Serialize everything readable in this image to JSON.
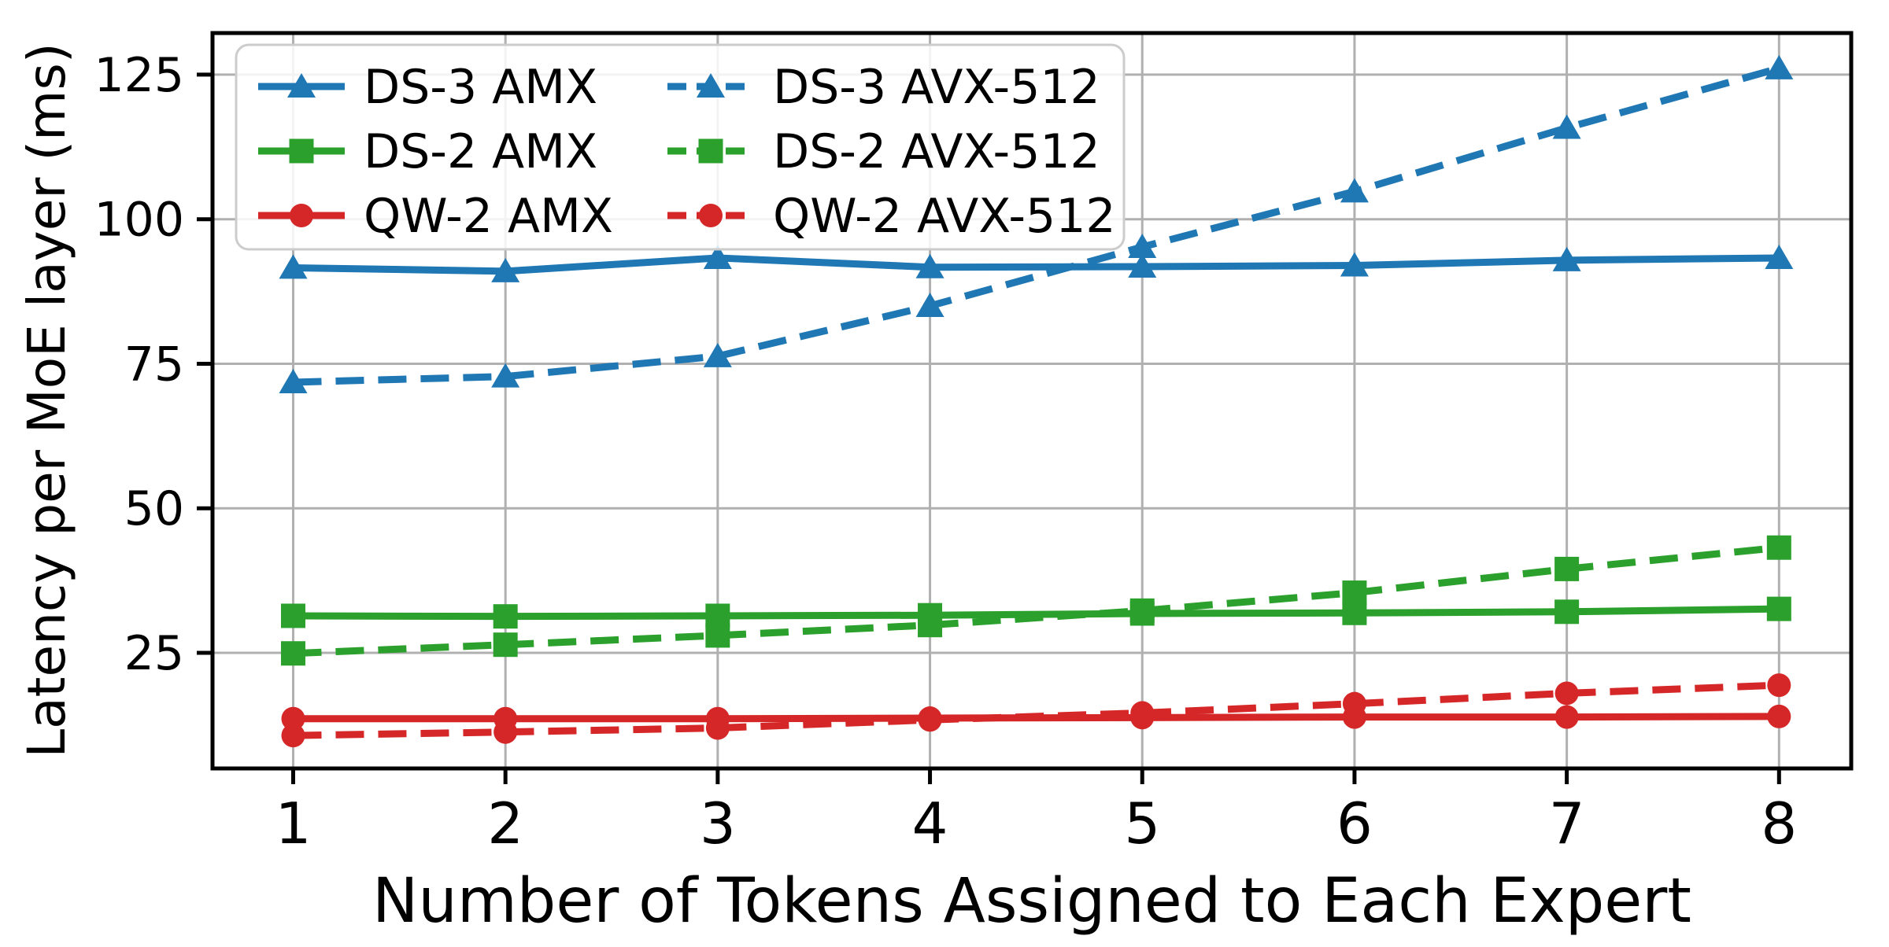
{
  "chart_data": {
    "type": "line",
    "title": "",
    "xlabel": "Number of Tokens Assigned to Each Expert",
    "ylabel": "Latency per MoE layer (ms)",
    "x": [
      1,
      2,
      3,
      4,
      5,
      6,
      7,
      8
    ],
    "xtick_labels": [
      "1",
      "2",
      "3",
      "4",
      "5",
      "6",
      "7",
      "8"
    ],
    "yticks": [
      25,
      50,
      75,
      100,
      125
    ],
    "ytick_labels": [
      "25",
      "50",
      "75",
      "100",
      "125"
    ],
    "xlim": [
      0.62,
      8.34
    ],
    "ylim": [
      5.0,
      132.2
    ],
    "grid": true,
    "legend_position": "upper-left",
    "legend_columns": 2,
    "series": [
      {
        "name": "DS-3 AMX",
        "color": "#1f77b4",
        "linestyle": "solid",
        "marker": "triangle",
        "values": [
          91.6,
          91.0,
          93.3,
          91.7,
          91.8,
          92.0,
          92.9,
          93.3
        ]
      },
      {
        "name": "DS-2 AMX",
        "color": "#2ca02c",
        "linestyle": "solid",
        "marker": "square",
        "values": [
          31.4,
          31.3,
          31.4,
          31.5,
          31.8,
          31.9,
          32.1,
          32.6
        ]
      },
      {
        "name": "QW-2 AMX",
        "color": "#d62728",
        "linestyle": "solid",
        "marker": "circle",
        "values": [
          13.6,
          13.6,
          13.6,
          13.7,
          13.8,
          13.9,
          13.9,
          14.0
        ]
      },
      {
        "name": "DS-3 AVX-512",
        "color": "#1f77b4",
        "linestyle": "dashed",
        "marker": "triangle",
        "values": [
          71.8,
          72.8,
          76.3,
          85.0,
          95.2,
          104.8,
          115.8,
          126.1
        ]
      },
      {
        "name": "DS-2 AVX-512",
        "color": "#2ca02c",
        "linestyle": "dashed",
        "marker": "square",
        "values": [
          24.9,
          26.4,
          28.0,
          29.8,
          32.3,
          35.4,
          39.5,
          43.2
        ]
      },
      {
        "name": "QW-2 AVX-512",
        "color": "#d62728",
        "linestyle": "dashed",
        "marker": "circle",
        "values": [
          10.7,
          11.3,
          12.0,
          13.4,
          14.6,
          16.2,
          18.0,
          19.4
        ]
      }
    ]
  },
  "colors": {
    "background": "#ffffff",
    "grid": "#b0b0b0",
    "spine": "#000000",
    "legend_border": "#cccccc",
    "legend_fill": "#ffffff"
  }
}
